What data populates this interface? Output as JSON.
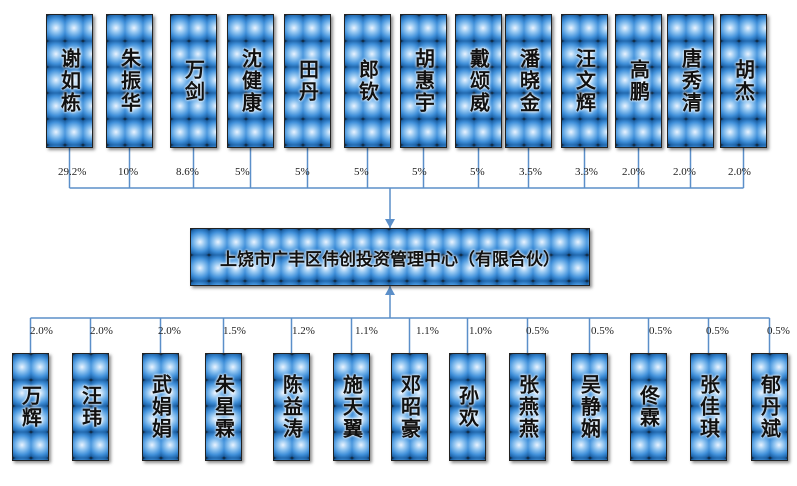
{
  "center": {
    "name": "上饶市广丰区伟创投资管理中心（有限合伙）"
  },
  "top_holders": [
    {
      "name": "谢如栋",
      "pct": "29.2%"
    },
    {
      "name": "朱振华",
      "pct": "10%"
    },
    {
      "name": "万剑",
      "pct": "8.6%"
    },
    {
      "name": "沈健康",
      "pct": "5%"
    },
    {
      "name": "田丹",
      "pct": "5%"
    },
    {
      "name": "郎钦",
      "pct": "5%"
    },
    {
      "name": "胡惠宇",
      "pct": "5%"
    },
    {
      "name": "戴颂威",
      "pct": "5%"
    },
    {
      "name": "潘晓金",
      "pct": "3.5%"
    },
    {
      "name": "汪文辉",
      "pct": "3.3%"
    },
    {
      "name": "高鹏",
      "pct": "2.0%"
    },
    {
      "name": "唐秀清",
      "pct": "2.0%"
    },
    {
      "name": "胡杰",
      "pct": "2.0%"
    }
  ],
  "bottom_holders": [
    {
      "name": "万辉",
      "pct": "2.0%"
    },
    {
      "name": "汪玮",
      "pct": "2.0%"
    },
    {
      "name": "武娟娟",
      "pct": "2.0%"
    },
    {
      "name": "朱星霖",
      "pct": "1.5%"
    },
    {
      "name": "陈益涛",
      "pct": "1.2%"
    },
    {
      "name": "施天翼",
      "pct": "1.1%"
    },
    {
      "name": "邓昭豪",
      "pct": "1.1%"
    },
    {
      "name": "孙欢",
      "pct": "1.0%"
    },
    {
      "name": "张燕燕",
      "pct": "0.5%"
    },
    {
      "name": "吴静娴",
      "pct": "0.5%"
    },
    {
      "name": "佟霖",
      "pct": "0.5%"
    },
    {
      "name": "张佳琪",
      "pct": "0.5%"
    },
    {
      "name": "郁丹斌",
      "pct": "0.5%"
    }
  ],
  "colors": {
    "line": "#5b8fc9",
    "box_dark": "#0a0a0a",
    "box_light": "#8ec3f0"
  }
}
